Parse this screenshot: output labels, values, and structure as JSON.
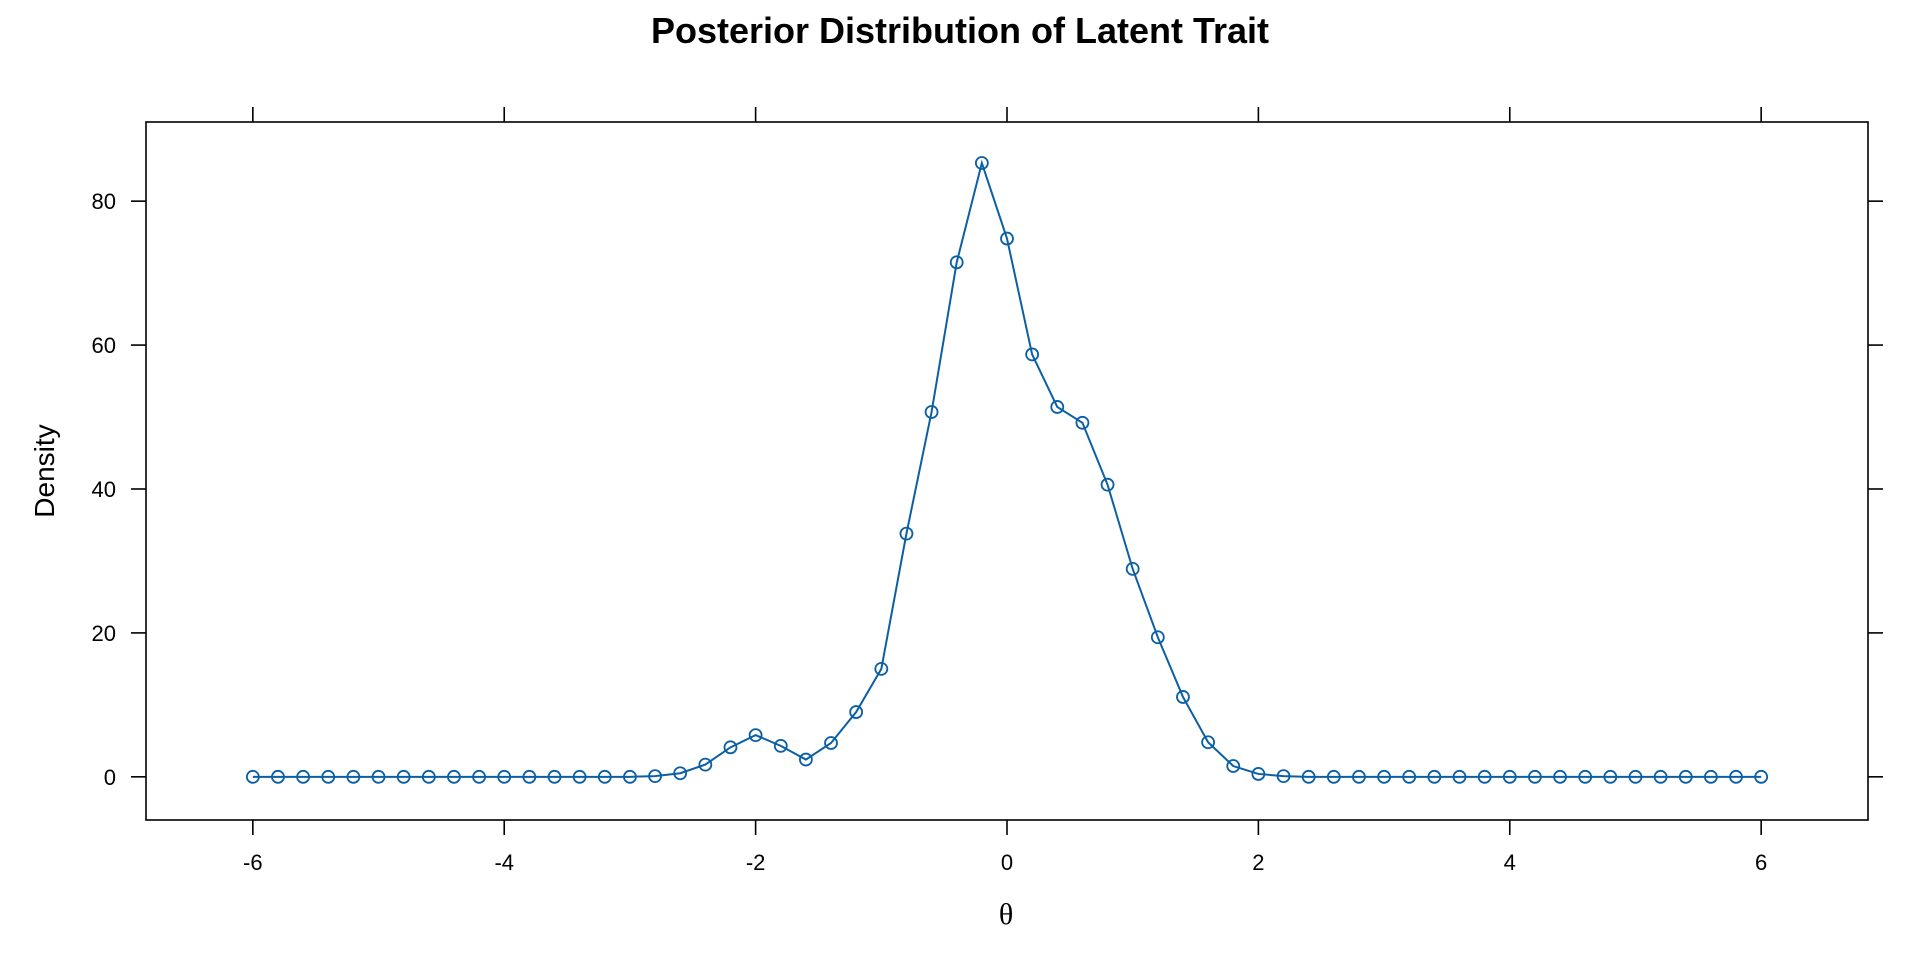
{
  "chart_data": {
    "type": "line",
    "title": "Posterior Distribution of Latent Trait",
    "xlabel": "θ",
    "ylabel": "Density",
    "xlim": [
      -6.85,
      6.85
    ],
    "ylim": [
      -6,
      91
    ],
    "x_ticks": [
      -6,
      -4,
      -2,
      0,
      2,
      4,
      6
    ],
    "y_ticks": [
      0,
      20,
      40,
      60,
      80
    ],
    "grid": false,
    "legend": "none",
    "series": [
      {
        "color": "#0b5fa5",
        "marker": "open-circle",
        "x": [
          -6.0,
          -5.8,
          -5.6,
          -5.4,
          -5.2,
          -5.0,
          -4.8,
          -4.6,
          -4.4,
          -4.2,
          -4.0,
          -3.8,
          -3.6,
          -3.4,
          -3.2,
          -3.0,
          -2.8,
          -2.6,
          -2.4,
          -2.2,
          -2.0,
          -1.8,
          -1.6,
          -1.4,
          -1.2,
          -1.0,
          -0.8,
          -0.6,
          -0.4,
          -0.2,
          0.0,
          0.2,
          0.4,
          0.6,
          0.8,
          1.0,
          1.2,
          1.4,
          1.6,
          1.8,
          2.0,
          2.2,
          2.4,
          2.6,
          2.8,
          3.0,
          3.2,
          3.4,
          3.6,
          3.8,
          4.0,
          4.2,
          4.4,
          4.6,
          4.8,
          5.0,
          5.2,
          5.4,
          5.6,
          5.8,
          6.0
        ],
        "y": [
          0,
          0,
          0,
          0,
          0,
          0,
          0,
          0,
          0,
          0,
          0,
          0,
          0,
          0,
          0,
          0,
          0.1,
          0.5,
          1.7,
          4.1,
          5.8,
          4.3,
          2.4,
          4.7,
          9.0,
          15.0,
          33.8,
          50.7,
          71.5,
          85.3,
          74.8,
          58.7,
          51.4,
          49.2,
          40.6,
          28.9,
          19.4,
          11.1,
          4.8,
          1.5,
          0.4,
          0.1,
          0,
          0,
          0,
          0,
          0,
          0,
          0,
          0,
          0,
          0,
          0,
          0,
          0,
          0,
          0,
          0,
          0,
          0,
          0
        ]
      }
    ]
  }
}
